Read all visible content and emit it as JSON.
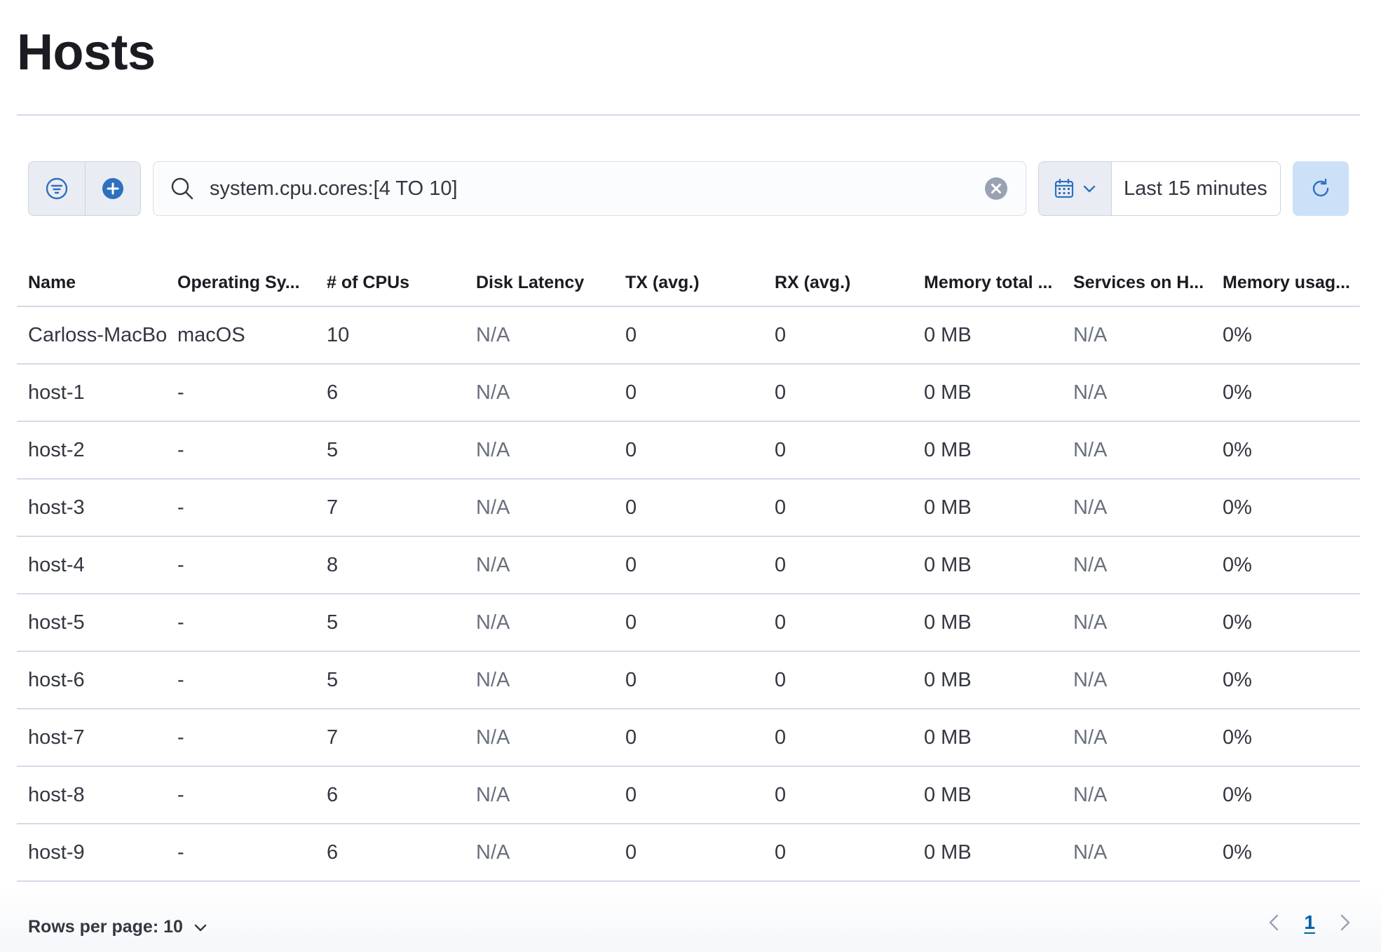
{
  "page": {
    "title": "Hosts"
  },
  "toolbar": {
    "search_query": "system.cpu.cores:[4 TO 10]",
    "time_range": "Last 15 minutes"
  },
  "table": {
    "columns": [
      "Name",
      "Operating Sy...",
      "# of CPUs",
      "Disk Latency",
      "TX (avg.)",
      "RX (avg.)",
      "Memory total ...",
      "Services on H...",
      "Memory usag..."
    ],
    "rows": [
      [
        "Carloss-MacBook-Pro",
        "macOS",
        "10",
        "N/A",
        "0",
        "0",
        "0 MB",
        "N/A",
        "0%"
      ],
      [
        "host-1",
        "-",
        "6",
        "N/A",
        "0",
        "0",
        "0 MB",
        "N/A",
        "0%"
      ],
      [
        "host-2",
        "-",
        "5",
        "N/A",
        "0",
        "0",
        "0 MB",
        "N/A",
        "0%"
      ],
      [
        "host-3",
        "-",
        "7",
        "N/A",
        "0",
        "0",
        "0 MB",
        "N/A",
        "0%"
      ],
      [
        "host-4",
        "-",
        "8",
        "N/A",
        "0",
        "0",
        "0 MB",
        "N/A",
        "0%"
      ],
      [
        "host-5",
        "-",
        "5",
        "N/A",
        "0",
        "0",
        "0 MB",
        "N/A",
        "0%"
      ],
      [
        "host-6",
        "-",
        "5",
        "N/A",
        "0",
        "0",
        "0 MB",
        "N/A",
        "0%"
      ],
      [
        "host-7",
        "-",
        "7",
        "N/A",
        "0",
        "0",
        "0 MB",
        "N/A",
        "0%"
      ],
      [
        "host-8",
        "-",
        "6",
        "N/A",
        "0",
        "0",
        "0 MB",
        "N/A",
        "0%"
      ],
      [
        "host-9",
        "-",
        "6",
        "N/A",
        "0",
        "0",
        "0 MB",
        "N/A",
        "0%"
      ]
    ]
  },
  "footer": {
    "rows_per_page_label": "Rows per page: 10",
    "current_page": "1"
  },
  "icons": {
    "filter": "filter-icon",
    "add": "plus-in-circle-icon",
    "search": "search-icon",
    "clear": "clear-icon",
    "calendar": "calendar-icon",
    "chevron": "chevron-down-icon",
    "refresh": "refresh-icon",
    "prev": "chevron-left-icon",
    "next": "chevron-right-icon"
  },
  "colors": {
    "accent": "#0061a6",
    "add_button": "#2f6fbf",
    "refresh_bg": "#cce1f8",
    "border": "#d3dae6",
    "muted_text": "#69707d"
  }
}
